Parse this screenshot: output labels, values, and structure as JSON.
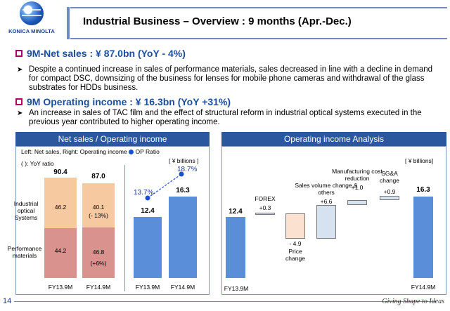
{
  "logo": {
    "text": "KONICA MINOLTA",
    "icon": "globe-logo-icon"
  },
  "header": {
    "title": "Industrial Business – Overview : 9 months  (Apr.-Dec.)"
  },
  "bullets": [
    {
      "heading": "9M-Net sales :  ¥ 87.0bn  (YoY - 4%)",
      "text": "Despite a continued increase in sales of performance materials, sales decreased in line with a decline in demand for compact DSC, downsizing of the business for lenses for mobile phone cameras and withdrawal of the glass substrates for HDDs business."
    },
    {
      "heading": "9M Operating income :  ¥ 16.3bn (YoY +31%)",
      "text": "An increase in sales of TAC film and the effect of structural reform in industrial optical systems executed in the previous year contributed to higher operating income."
    }
  ],
  "left_panel": {
    "title": "Net sales / Operating income",
    "legend": "Left: Net sales,  Right: Operating income",
    "legend_op": "OP Ratio",
    "yoy_note": "( ): YoY ratio",
    "units": "[ ¥ billions ]",
    "segment_labels": {
      "ios": "Industrial optical Systems",
      "pm": "Performance materials"
    }
  },
  "right_panel": {
    "title": "Operating income Analysis",
    "units": "[ ¥ billions]"
  },
  "chart_data": [
    {
      "type": "bar",
      "stacked": true,
      "categories": [
        "FY13.9M",
        "FY14.9M"
      ],
      "series": [
        {
          "name": "Performance materials",
          "values": [
            44.2,
            46.8
          ],
          "yoy": [
            "",
            "(+6%)"
          ],
          "color": "#d9928e"
        },
        {
          "name": "Industrial optical Systems",
          "values": [
            46.2,
            40.1
          ],
          "yoy": [
            "",
            "(- 13%)"
          ],
          "color": "#f7c9a0"
        }
      ],
      "totals": [
        "90.4",
        "87.0"
      ],
      "value_labels": {
        "pm": [
          "44.2",
          "46.8"
        ],
        "ios": [
          "46.2",
          "40.1"
        ]
      }
    },
    {
      "type": "bar",
      "categories": [
        "FY13.9M",
        "FY14.9M"
      ],
      "values": [
        12.4,
        16.3
      ],
      "value_labels": [
        "12.4",
        "16.3"
      ],
      "op_ratio": [
        "13.7%",
        "18.7%"
      ],
      "color": "#5b8ed8",
      "ratio_color": "#1a4fd0"
    },
    {
      "type": "bar",
      "subtype": "waterfall",
      "categories": [
        "FY13.9M",
        "FOREX",
        "Price change",
        "Sales volume change & others",
        "Manufacturing cost reduction",
        "SG&A change",
        "FY14.9M"
      ],
      "values": [
        12.4,
        0.3,
        -4.9,
        6.6,
        1.0,
        0.9,
        16.3
      ],
      "value_labels": [
        "12.4",
        "+0.3",
        "- 4.9",
        "+6.6",
        "+1.0",
        "+0.9",
        "16.3"
      ],
      "colors": {
        "total": "#5b8ed8",
        "increase": "#d6e2f0",
        "decrease": "#fbe2d0"
      }
    }
  ],
  "footer": {
    "page": "14",
    "tagline": "Giving Shape to Ideas"
  }
}
